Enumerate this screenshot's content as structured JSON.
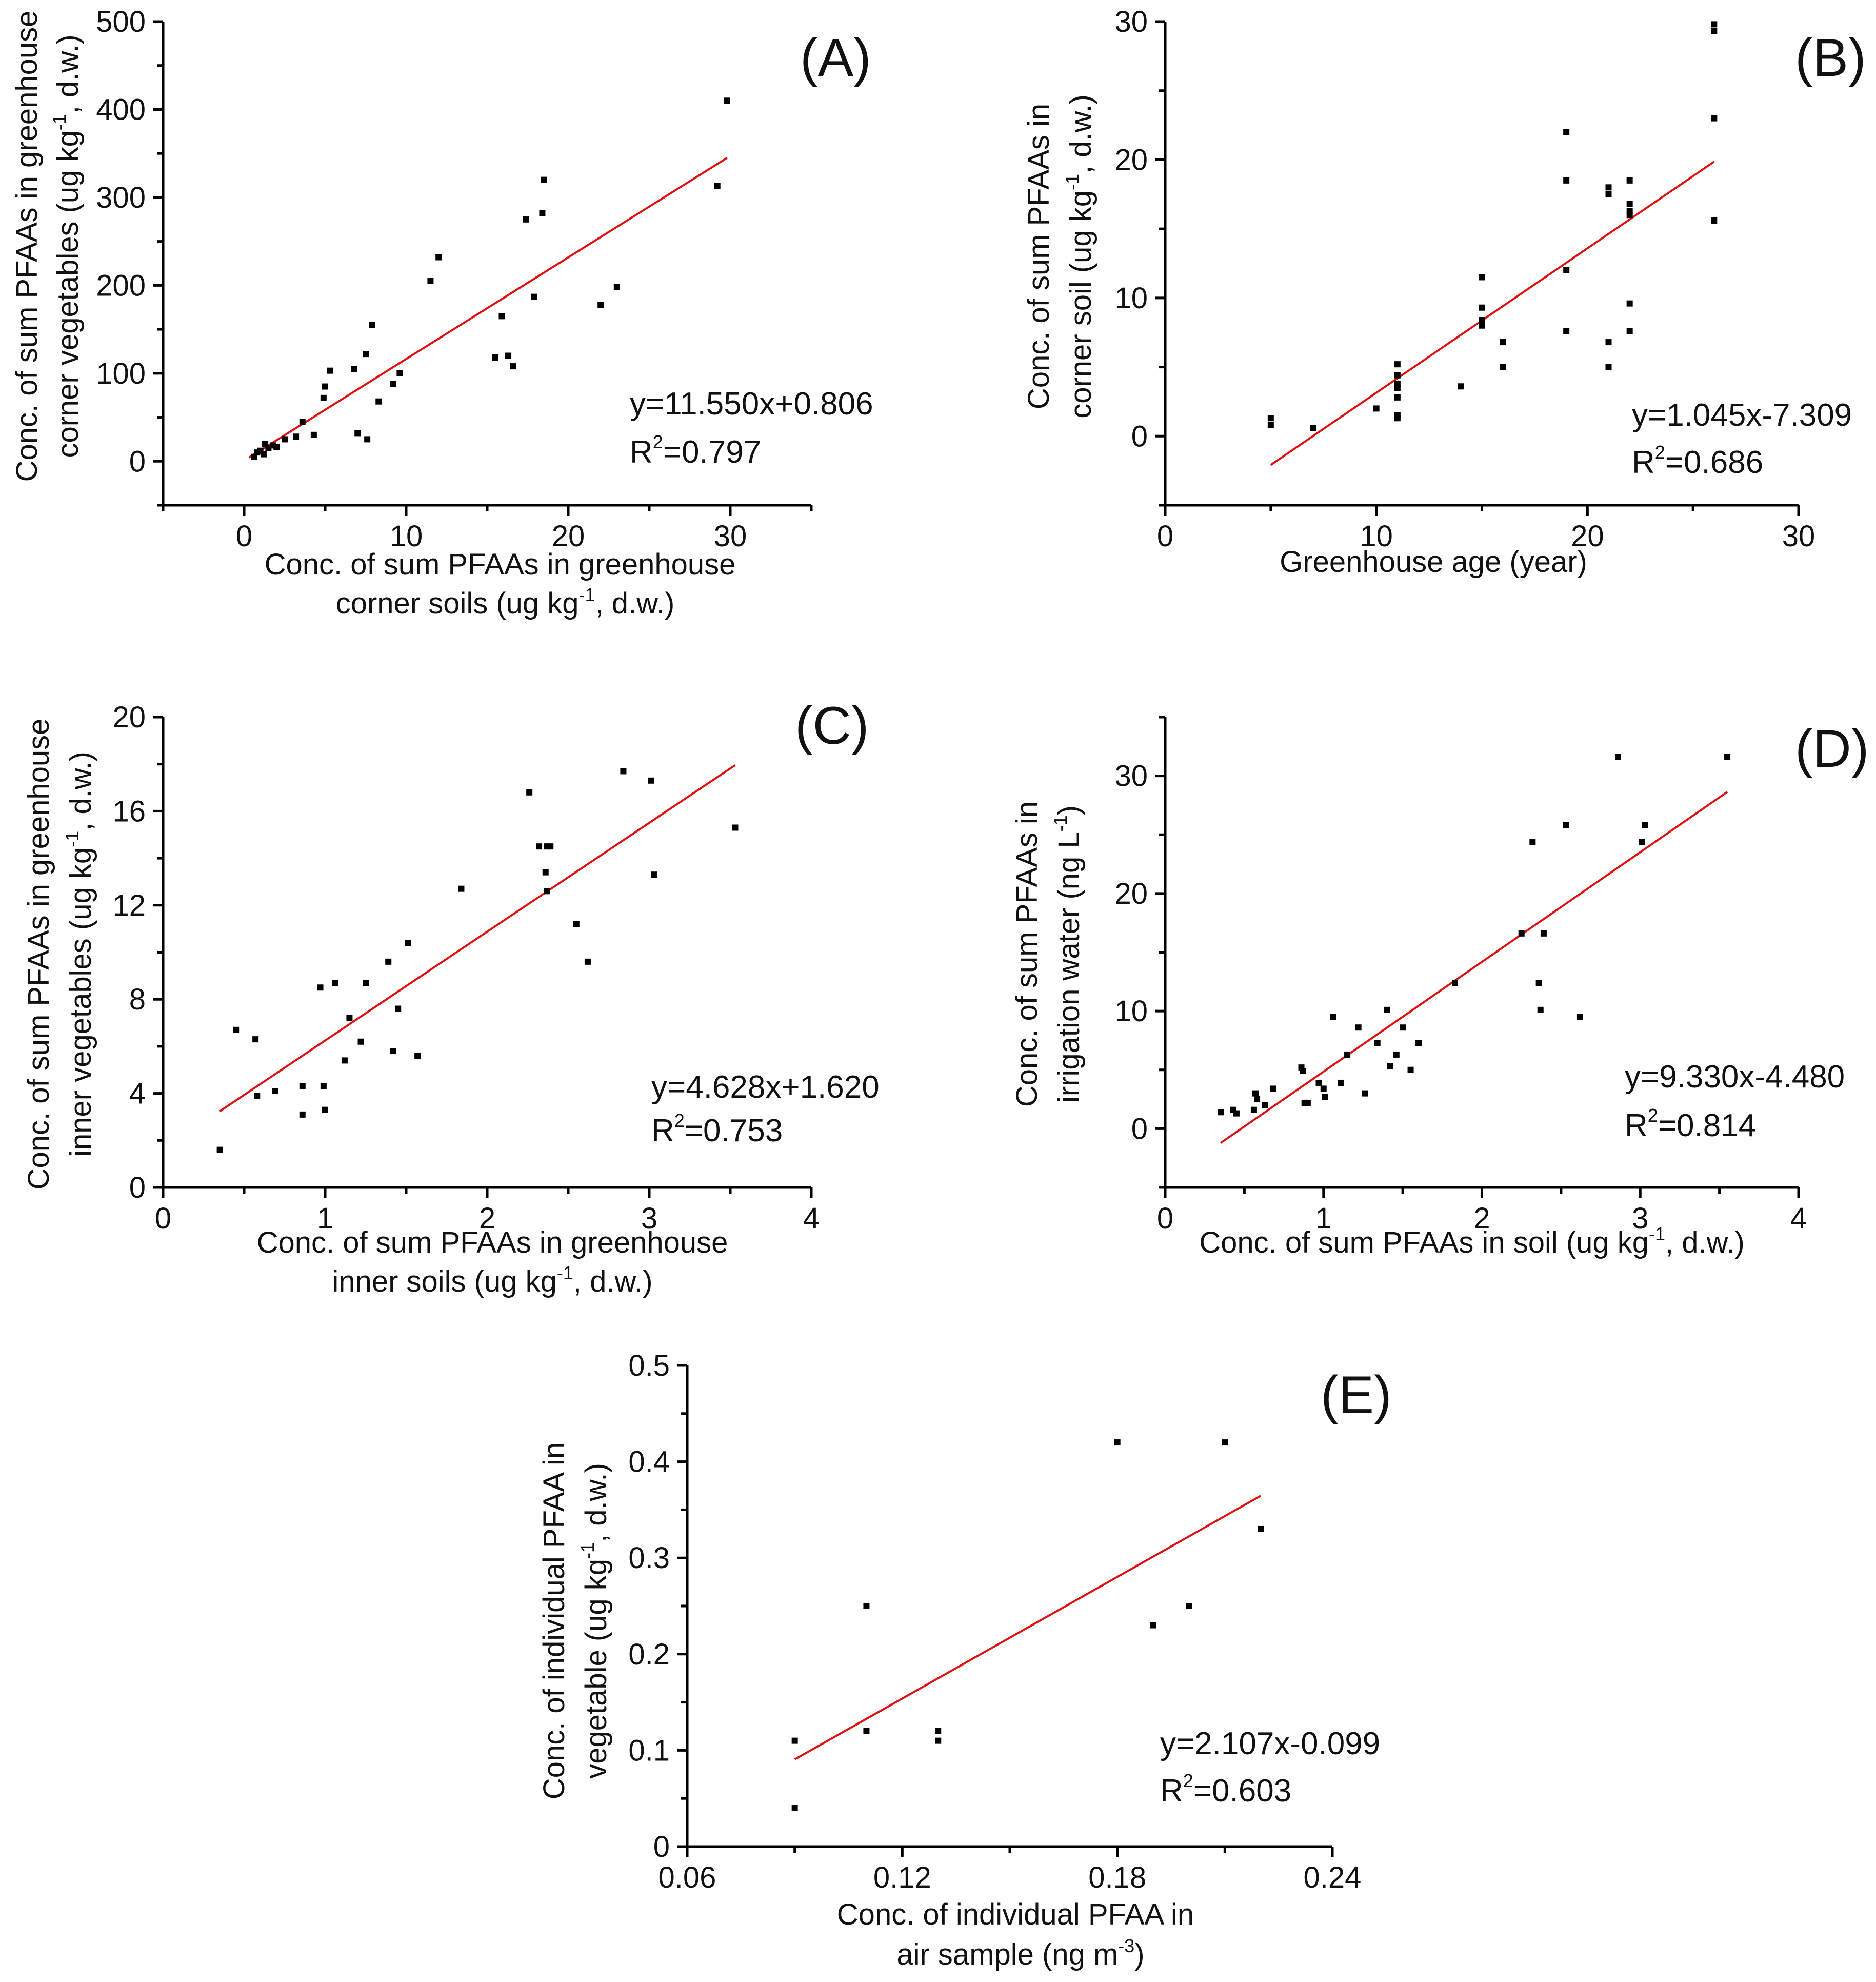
{
  "chart_data": [
    {
      "id": "A",
      "type": "scatter",
      "panel_label": "(A)",
      "xlabel": "Conc. of  sum PFAAs in greenhouse",
      "xlabel_line2": "corner soils (ug kg",
      "xlabel_sup": "-1",
      "xlabel_after": ", d.w.)",
      "ylabel": "Conc. of  sum PFAAs in greenhouse",
      "ylabel_line2": "corner vegetables  (ug kg",
      "ylabel_sup": "-1",
      "ylabel_after": ", d.w.)",
      "xlim": [
        -5,
        35
      ],
      "ylim": [
        -50,
        500
      ],
      "xticks": [
        0,
        10,
        20,
        30
      ],
      "xtick_labels": [
        "0",
        "10",
        "20",
        "30"
      ],
      "yticks": [
        0,
        100,
        200,
        300,
        400,
        500
      ],
      "ytick_labels": [
        "0",
        "100",
        "200",
        "300",
        "400",
        "500"
      ],
      "x": [
        0.6,
        0.8,
        1.0,
        1.2,
        1.3,
        1.5,
        1.8,
        2.0,
        2.5,
        3.2,
        3.6,
        4.3,
        4.9,
        5.0,
        5.3,
        6.8,
        7.0,
        7.5,
        7.6,
        7.9,
        8.3,
        9.2,
        9.6,
        11.5,
        12.0,
        15.5,
        15.9,
        16.3,
        16.6,
        17.4,
        17.9,
        18.4,
        18.5,
        22.0,
        23.0,
        29.2,
        29.8
      ],
      "y": [
        5,
        10,
        12,
        8,
        20,
        15,
        18,
        16,
        25,
        28,
        45,
        30,
        72,
        85,
        103,
        105,
        32,
        122,
        25,
        155,
        68,
        88,
        100,
        205,
        232,
        118,
        165,
        120,
        108,
        275,
        187,
        282,
        320,
        178,
        198,
        313,
        410
      ],
      "fit": {
        "slope": 11.55,
        "intercept": 0.806,
        "x_range": [
          0.3,
          29.8
        ]
      },
      "equation": "y=11.550x+0.806",
      "r2_prefix": "R",
      "r2_sup": "2",
      "r2_value": "=0.797"
    },
    {
      "id": "B",
      "type": "scatter",
      "panel_label": "(B)",
      "xlabel": "Greenhouse age (year)",
      "ylabel": "Conc. of sum PFAAs in",
      "ylabel_line2": "corner soil (ug kg",
      "ylabel_sup": "-1",
      "ylabel_after": ", d.w.)",
      "xlim": [
        0,
        30
      ],
      "ylim": [
        -5,
        30
      ],
      "xticks": [
        0,
        10,
        20,
        30
      ],
      "xtick_labels": [
        "0",
        "10",
        "20",
        "30"
      ],
      "yticks": [
        0,
        10,
        20,
        30
      ],
      "ytick_labels": [
        "0",
        "10",
        "20",
        "30"
      ],
      "x": [
        5,
        5,
        7,
        10,
        11,
        11,
        11,
        11,
        11,
        11,
        11,
        14,
        15,
        15,
        15,
        15,
        16,
        16,
        19,
        19,
        19,
        19,
        21,
        21,
        21,
        21,
        22,
        22,
        22,
        22,
        22,
        22,
        26,
        26,
        26,
        26
      ],
      "y": [
        1.3,
        0.8,
        0.6,
        2.0,
        5.2,
        4.4,
        3.8,
        3.5,
        2.8,
        1.5,
        1.3,
        3.6,
        11.5,
        9.3,
        8.4,
        8.0,
        6.8,
        5.0,
        22.0,
        18.5,
        12.0,
        7.6,
        18.0,
        17.5,
        6.8,
        5.0,
        18.5,
        16.8,
        16.3,
        16.0,
        9.6,
        7.6,
        29.8,
        29.3,
        23.0,
        15.6
      ],
      "fit": {
        "slope": 1.045,
        "intercept": -7.309,
        "x_range": [
          5,
          26
        ]
      },
      "equation": "y=1.045x-7.309",
      "r2_prefix": "R",
      "r2_sup": "2",
      "r2_value": "=0.686"
    },
    {
      "id": "C",
      "type": "scatter",
      "panel_label": "(C)",
      "xlabel": "Conc. of  sum PFAAs in greenhouse",
      "xlabel_line2": "inner soils (ug kg",
      "xlabel_sup": "-1",
      "xlabel_after": ", d.w.)",
      "ylabel": "Conc. of  sum PFAAs in greenhouse",
      "ylabel_line2": "inner vegetables  (ug kg",
      "ylabel_sup": "-1",
      "ylabel_after": ", d.w.)",
      "xlim": [
        0,
        4
      ],
      "ylim": [
        0,
        20
      ],
      "xticks": [
        0,
        1,
        2,
        3,
        4
      ],
      "xtick_labels": [
        "0",
        "1",
        "2",
        "3",
        "4"
      ],
      "yticks": [
        0,
        4,
        8,
        12,
        16,
        20
      ],
      "ytick_labels": [
        "0",
        "4",
        "8",
        "12",
        "16",
        "20"
      ],
      "x": [
        0.35,
        0.45,
        0.57,
        0.58,
        0.69,
        0.86,
        0.86,
        0.97,
        0.99,
        1.0,
        1.06,
        1.12,
        1.15,
        1.22,
        1.25,
        1.39,
        1.42,
        1.45,
        1.51,
        1.57,
        1.84,
        2.26,
        2.32,
        2.36,
        2.37,
        2.37,
        2.39,
        2.55,
        2.62,
        2.84,
        3.01,
        3.03,
        3.53
      ],
      "y": [
        1.6,
        6.7,
        6.3,
        3.9,
        4.1,
        4.3,
        3.1,
        8.5,
        4.3,
        3.3,
        8.7,
        5.4,
        7.2,
        6.2,
        8.7,
        9.6,
        5.8,
        7.6,
        10.4,
        5.6,
        12.7,
        16.8,
        14.5,
        13.4,
        12.6,
        14.5,
        14.5,
        11.2,
        9.6,
        17.7,
        17.3,
        13.3,
        15.3
      ],
      "fit": {
        "slope": 4.628,
        "intercept": 1.62,
        "x_range": [
          0.35,
          3.53
        ]
      },
      "equation": "y=4.628x+1.620",
      "r2_prefix": "R",
      "r2_sup": "2",
      "r2_value": "=0.753"
    },
    {
      "id": "D",
      "type": "scatter",
      "panel_label": "(D)",
      "xlabel": "Conc. of sum PFAAs in soil (ug kg",
      "xlabel_sup": "-1",
      "xlabel_after": ", d.w.)",
      "ylabel": "Conc. of sum PFAAs in",
      "ylabel_line2": "irrigation water (ng L",
      "ylabel_sup": "-1",
      "ylabel_after": ")",
      "xlim": [
        0,
        4
      ],
      "ylim": [
        -5,
        35
      ],
      "xticks": [
        0,
        1,
        2,
        3,
        4
      ],
      "xtick_labels": [
        "0",
        "1",
        "2",
        "3",
        "4"
      ],
      "yticks": [
        0,
        10,
        20,
        30
      ],
      "ytick_labels": [
        "0",
        "10",
        "20",
        "30"
      ],
      "x": [
        0.35,
        0.43,
        0.45,
        0.56,
        0.57,
        0.58,
        0.63,
        0.68,
        0.86,
        0.87,
        0.88,
        0.9,
        0.97,
        1.0,
        1.01,
        1.06,
        1.11,
        1.15,
        1.22,
        1.26,
        1.34,
        1.4,
        1.42,
        1.46,
        1.5,
        1.55,
        1.6,
        1.83,
        2.25,
        2.32,
        2.36,
        2.37,
        2.39,
        2.53,
        2.62,
        2.86,
        3.01,
        3.03,
        3.55
      ],
      "y": [
        1.4,
        1.6,
        1.3,
        1.6,
        3.0,
        2.5,
        2.0,
        3.4,
        5.2,
        4.9,
        2.2,
        2.2,
        3.9,
        3.4,
        2.7,
        9.5,
        3.9,
        6.3,
        8.6,
        3.0,
        7.3,
        10.1,
        5.3,
        6.3,
        8.6,
        5.0,
        7.3,
        12.4,
        16.6,
        24.4,
        12.4,
        10.1,
        16.6,
        25.8,
        9.5,
        31.6,
        24.4,
        25.8,
        31.6
      ],
      "fit": {
        "slope": 9.33,
        "intercept": -4.48,
        "x_range": [
          0.35,
          3.55
        ]
      },
      "equation": "y=9.330x-4.480",
      "r2_prefix": "R",
      "r2_sup": "2",
      "r2_value": "=0.814"
    },
    {
      "id": "E",
      "type": "scatter",
      "panel_label": "(E)",
      "xlabel": "Conc. of individual PFAA in",
      "xlabel_line2": "air sample (ng m",
      "xlabel_sup": "-3",
      "xlabel_after": ")",
      "ylabel": "Conc. of individual PFAA in",
      "ylabel_line2": "vegetable  (ug kg",
      "ylabel_sup": "-1",
      "ylabel_after": ", d.w.)",
      "xlim": [
        0.06,
        0.24
      ],
      "ylim": [
        0,
        0.5
      ],
      "xticks": [
        0.06,
        0.12,
        0.18,
        0.24
      ],
      "xtick_labels": [
        "0.06",
        "0.12",
        "0.18",
        "0.24"
      ],
      "yticks": [
        0,
        0.1,
        0.2,
        0.3,
        0.4,
        0.5
      ],
      "ytick_labels": [
        "0",
        "0.1",
        "0.2",
        "0.3",
        "0.4",
        "0.5"
      ],
      "x": [
        0.09,
        0.09,
        0.11,
        0.11,
        0.13,
        0.13,
        0.18,
        0.19,
        0.2,
        0.21,
        0.22
      ],
      "y": [
        0.11,
        0.04,
        0.25,
        0.12,
        0.12,
        0.11,
        0.42,
        0.23,
        0.25,
        0.42,
        0.33
      ],
      "fit": {
        "slope": 2.107,
        "intercept": -0.099,
        "x_range": [
          0.09,
          0.22
        ]
      },
      "equation": "y=2.107x-0.099",
      "r2_prefix": "R",
      "r2_sup": "2",
      "r2_value": "=0.603"
    }
  ]
}
